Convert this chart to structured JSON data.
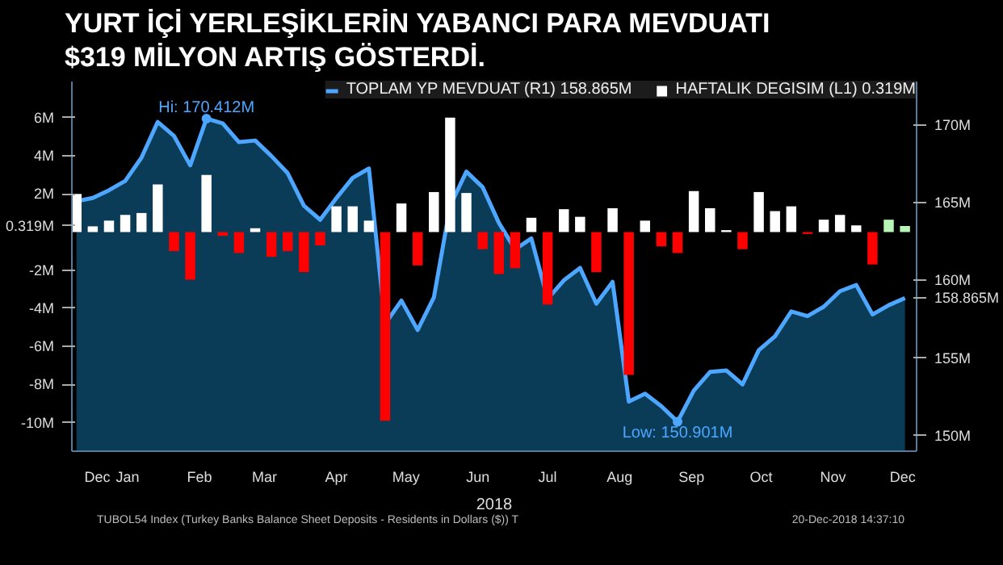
{
  "chart_data": {
    "type": "bar",
    "title": "YURT İÇİ YERLEŞİKLERİN YABANCI PARA MEVDUATI\n$319 MİLYON ARTIŞ GÖSTERDİ.",
    "xlabel": "2018",
    "x": [
      "2017-12-22",
      "2017-12-29",
      "2018-01-05",
      "2018-01-12",
      "2018-01-19",
      "2018-01-26",
      "2018-02-02",
      "2018-02-09",
      "2018-02-16",
      "2018-02-23",
      "2018-03-02",
      "2018-03-09",
      "2018-03-16",
      "2018-03-23",
      "2018-03-30",
      "2018-04-06",
      "2018-04-13",
      "2018-04-20",
      "2018-04-27",
      "2018-05-04",
      "2018-05-11",
      "2018-05-18",
      "2018-05-25",
      "2018-06-01",
      "2018-06-08",
      "2018-06-15",
      "2018-06-22",
      "2018-06-29",
      "2018-07-06",
      "2018-07-13",
      "2018-07-20",
      "2018-07-27",
      "2018-08-03",
      "2018-08-10",
      "2018-08-17",
      "2018-08-24",
      "2018-08-31",
      "2018-09-07",
      "2018-09-14",
      "2018-09-21",
      "2018-09-28",
      "2018-10-05",
      "2018-10-12",
      "2018-10-19",
      "2018-10-26",
      "2018-11-02",
      "2018-11-09",
      "2018-11-16",
      "2018-11-23",
      "2018-11-30",
      "2018-12-07",
      "2018-12-14"
    ],
    "series": [
      {
        "name": "TOPLAM YP MEVDUAT (R1) 158.865M",
        "type": "area",
        "axis": "y2",
        "color": "#4da6ff",
        "values": [
          165.1,
          165.3,
          165.8,
          166.4,
          167.9,
          170.2,
          169.3,
          167.4,
          170.412,
          170.1,
          168.9,
          169.0,
          168.0,
          166.9,
          164.8,
          163.9,
          165.3,
          166.6,
          167.2,
          157.2,
          158.7,
          156.8,
          158.9,
          164.8,
          167.0,
          166.0,
          163.7,
          162.0,
          162.7,
          158.8,
          160.0,
          160.8,
          158.5,
          159.9,
          152.2,
          152.7,
          151.9,
          150.901,
          152.9,
          154.1,
          154.2,
          153.3,
          155.5,
          156.4,
          158.0,
          157.7,
          158.3,
          159.3,
          159.7,
          157.8,
          158.4,
          158.865
        ]
      },
      {
        "name": "HAFTALIK DEGISIM (L1) 0.319M",
        "values": [
          2.0,
          0.3,
          0.6,
          0.9,
          1.0,
          2.5,
          -1.0,
          -2.5,
          3.0,
          -0.2,
          -1.1,
          0.2,
          -1.3,
          -1.0,
          -2.1,
          -0.7,
          1.35,
          1.35,
          0.6,
          -9.9,
          1.5,
          -1.75,
          2.1,
          6.0,
          2.05,
          -0.9,
          -2.2,
          -1.9,
          0.75,
          -3.8,
          1.2,
          0.8,
          -2.1,
          1.25,
          -7.5,
          0.6,
          -0.75,
          -1.1,
          2.15,
          1.25,
          0.1,
          -0.9,
          2.1,
          1.1,
          1.35,
          -0.1,
          0.65,
          0.9,
          0.35,
          -1.7,
          0.65,
          0.319
        ],
        "colors": [
          "#ffffff",
          "#ffffff",
          "#ffffff",
          "#ffffff",
          "#ffffff",
          "#ffffff",
          "#ff0000",
          "#ff0000",
          "#ffffff",
          "#ff0000",
          "#ff0000",
          "#ffffff",
          "#ff0000",
          "#ff0000",
          "#ff0000",
          "#ff0000",
          "#ffffff",
          "#ffffff",
          "#ffffff",
          "#ff0000",
          "#ffffff",
          "#ff0000",
          "#ffffff",
          "#ffffff",
          "#ffffff",
          "#ff0000",
          "#ff0000",
          "#ff0000",
          "#ffffff",
          "#ff0000",
          "#ffffff",
          "#ffffff",
          "#ff0000",
          "#ffffff",
          "#ff0000",
          "#ffffff",
          "#ff0000",
          "#ff0000",
          "#ffffff",
          "#ffffff",
          "#ffffff",
          "#ff0000",
          "#ffffff",
          "#ffffff",
          "#ffffff",
          "#ff0000",
          "#ffffff",
          "#ffffff",
          "#ffffff",
          "#ff0000",
          "#b8f5b8",
          "#b8f5b8"
        ]
      }
    ],
    "xlim": [
      "2017-12-20",
      "2018-12-19"
    ],
    "xticks": [
      {
        "value": "2017-12-31",
        "label": "Dec"
      },
      {
        "value": "2018-01-13",
        "label": "Jan"
      },
      {
        "value": "2018-02-13",
        "label": "Feb"
      },
      {
        "value": "2018-03-13",
        "label": "Mar"
      },
      {
        "value": "2018-04-13",
        "label": "Apr"
      },
      {
        "value": "2018-05-13",
        "label": "May"
      },
      {
        "value": "2018-06-13",
        "label": "Jun"
      },
      {
        "value": "2018-07-13",
        "label": "Jul"
      },
      {
        "value": "2018-08-13",
        "label": "Aug"
      },
      {
        "value": "2018-09-13",
        "label": "Sep"
      },
      {
        "value": "2018-10-13",
        "label": "Oct"
      },
      {
        "value": "2018-11-13",
        "label": "Nov"
      },
      {
        "value": "2018-12-13",
        "label": "Dec"
      }
    ],
    "ylim": [
      -11.5,
      7.9
    ],
    "yticks": [
      {
        "value": 6,
        "label": "6M"
      },
      {
        "value": 4,
        "label": "4M"
      },
      {
        "value": 2,
        "label": "2M"
      },
      {
        "value": 0.319,
        "label": "0.319M"
      },
      {
        "value": -2,
        "label": "-2M"
      },
      {
        "value": -4,
        "label": "-4M"
      },
      {
        "value": -6,
        "label": "-6M"
      },
      {
        "value": -8,
        "label": "-8M"
      },
      {
        "value": -10,
        "label": "-10M"
      }
    ],
    "y2lim": [
      149,
      172.8
    ],
    "y2ticks": [
      {
        "value": 170,
        "label": "170M"
      },
      {
        "value": 165,
        "label": "165M"
      },
      {
        "value": 160,
        "label": "160M"
      },
      {
        "value": 158.865,
        "label": "158.865M"
      },
      {
        "value": 155,
        "label": "155M"
      },
      {
        "value": 150,
        "label": "150M"
      }
    ],
    "annotations": [
      "Hi: 170.412M",
      "Low: 150.901M",
      "TUBOL54 Index (Turkey Banks Balance Sheet Deposits - Residents in Dollars ($)) T",
      "20-Dec-2018 14:37:10"
    ],
    "legend": "top right",
    "grid": false
  }
}
